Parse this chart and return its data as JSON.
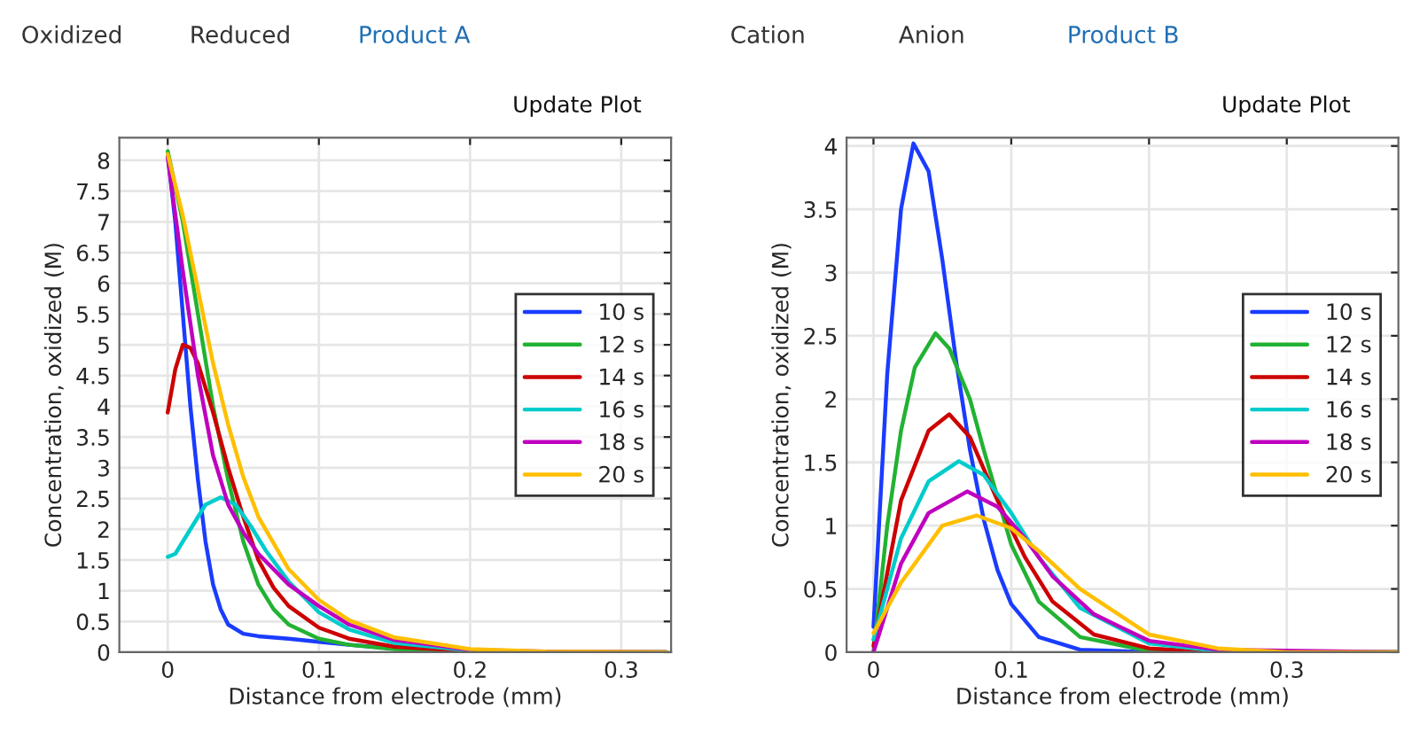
{
  "chart_data": [
    {
      "type": "line",
      "xlabel": "Distance from electrode (mm)",
      "ylabel": "Concentration, oxidized (M)",
      "annotations": [
        "Oxidized",
        "Reduced",
        "Product A",
        "Update Plot"
      ],
      "xlim": [
        -0.032,
        0.333
      ],
      "xticks": [
        0,
        0.1,
        0.2,
        0.3
      ],
      "ylim": [
        0,
        8.37
      ],
      "yticks": [
        0,
        0.5,
        1,
        1.5,
        2,
        2.5,
        3,
        3.5,
        4,
        4.5,
        5,
        5.5,
        6,
        6.5,
        7,
        7.5,
        8
      ],
      "grid": true,
      "legend": "right",
      "series": [
        {
          "name": "10 s",
          "color": "#1a3cff",
          "x": [
            0,
            0.005,
            0.01,
            0.015,
            0.02,
            0.025,
            0.03,
            0.035,
            0.04,
            0.05,
            0.06,
            0.08,
            0.1,
            0.12,
            0.15
          ],
          "values": [
            8.1,
            7,
            5.5,
            4,
            2.8,
            1.8,
            1.1,
            0.7,
            0.45,
            0.3,
            0.26,
            0.22,
            0.17,
            0.12,
            0.06
          ]
        },
        {
          "name": "12 s",
          "color": "#22b232",
          "x": [
            0,
            0.01,
            0.02,
            0.03,
            0.04,
            0.05,
            0.06,
            0.07,
            0.08,
            0.1,
            0.12,
            0.15,
            0.2,
            0.25,
            0.33
          ],
          "values": [
            8.15,
            7,
            5.5,
            4,
            2.8,
            1.8,
            1.1,
            0.7,
            0.45,
            0.22,
            0.12,
            0.05,
            0.01,
            0,
            0
          ]
        },
        {
          "name": "14 s",
          "color": "#cc0000",
          "x": [
            0,
            0.005,
            0.01,
            0.015,
            0.02,
            0.03,
            0.04,
            0.05,
            0.06,
            0.07,
            0.08,
            0.1,
            0.12,
            0.15,
            0.2,
            0.25,
            0.33
          ],
          "values": [
            3.9,
            4.6,
            5.0,
            4.95,
            4.7,
            3.9,
            3.0,
            2.2,
            1.5,
            1.05,
            0.75,
            0.4,
            0.22,
            0.09,
            0.02,
            0,
            0
          ]
        },
        {
          "name": "16 s",
          "color": "#00cccc",
          "x": [
            0,
            0.005,
            0.015,
            0.025,
            0.035,
            0.045,
            0.055,
            0.065,
            0.08,
            0.1,
            0.12,
            0.15,
            0.2,
            0.25,
            0.33
          ],
          "values": [
            1.55,
            1.6,
            2.0,
            2.4,
            2.52,
            2.4,
            2.05,
            1.65,
            1.15,
            0.65,
            0.37,
            0.15,
            0.03,
            0,
            0
          ]
        },
        {
          "name": "18 s",
          "color": "#bf00bf",
          "x": [
            0,
            0.01,
            0.02,
            0.03,
            0.04,
            0.05,
            0.06,
            0.08,
            0.1,
            0.12,
            0.15,
            0.2,
            0.25,
            0.33
          ],
          "values": [
            8.05,
            6.2,
            4.5,
            3.2,
            2.4,
            1.95,
            1.6,
            1.1,
            0.75,
            0.45,
            0.2,
            0.04,
            0.01,
            0
          ]
        },
        {
          "name": "20 s",
          "color": "#ffbf00",
          "x": [
            0,
            0.01,
            0.02,
            0.03,
            0.04,
            0.05,
            0.06,
            0.08,
            0.1,
            0.12,
            0.15,
            0.2,
            0.25,
            0.33
          ],
          "values": [
            8.1,
            7.1,
            5.9,
            4.7,
            3.7,
            2.85,
            2.2,
            1.35,
            0.85,
            0.52,
            0.24,
            0.05,
            0.01,
            0
          ]
        }
      ]
    },
    {
      "type": "line",
      "xlabel": "Distance from electrode (mm)",
      "ylabel": "Concentration, oxidized (M)",
      "annotations": [
        "Cation",
        "Anion",
        "Product B",
        "Update Plot"
      ],
      "xlim": [
        -0.0195,
        0.381
      ],
      "xticks": [
        0,
        0.1,
        0.2,
        0.3
      ],
      "ylim": [
        0,
        4.066
      ],
      "yticks": [
        0,
        0.5,
        1,
        1.5,
        2,
        2.5,
        3,
        3.5,
        4
      ],
      "grid": true,
      "legend": "right",
      "series": [
        {
          "name": "10 s",
          "color": "#1a3cff",
          "x": [
            0,
            0.01,
            0.02,
            0.029,
            0.04,
            0.05,
            0.06,
            0.07,
            0.08,
            0.09,
            0.1,
            0.12,
            0.15,
            0.2,
            0.38
          ],
          "values": [
            0.2,
            2.2,
            3.5,
            4.02,
            3.8,
            3.1,
            2.3,
            1.6,
            1.05,
            0.65,
            0.38,
            0.12,
            0.02,
            0,
            0
          ]
        },
        {
          "name": "12 s",
          "color": "#22b232",
          "x": [
            0,
            0.01,
            0.02,
            0.03,
            0.045,
            0.055,
            0.07,
            0.08,
            0.1,
            0.12,
            0.15,
            0.2,
            0.25,
            0.38
          ],
          "values": [
            0,
            1.0,
            1.75,
            2.25,
            2.52,
            2.4,
            2.0,
            1.6,
            0.85,
            0.4,
            0.12,
            0.01,
            0,
            0
          ]
        },
        {
          "name": "14 s",
          "color": "#cc0000",
          "x": [
            0,
            0.02,
            0.04,
            0.055,
            0.07,
            0.09,
            0.11,
            0.13,
            0.16,
            0.2,
            0.25,
            0.38
          ],
          "values": [
            0.05,
            1.2,
            1.75,
            1.88,
            1.7,
            1.2,
            0.75,
            0.4,
            0.14,
            0.03,
            0,
            0
          ]
        },
        {
          "name": "16 s",
          "color": "#00cccc",
          "x": [
            0,
            0.02,
            0.04,
            0.062,
            0.08,
            0.1,
            0.12,
            0.15,
            0.2,
            0.25,
            0.38
          ],
          "values": [
            0.1,
            0.9,
            1.35,
            1.51,
            1.4,
            1.1,
            0.75,
            0.35,
            0.07,
            0.01,
            0
          ]
        },
        {
          "name": "18 s",
          "color": "#bf00bf",
          "x": [
            0,
            0.02,
            0.04,
            0.068,
            0.09,
            0.11,
            0.13,
            0.16,
            0.2,
            0.25,
            0.38
          ],
          "values": [
            0,
            0.7,
            1.1,
            1.27,
            1.15,
            0.9,
            0.6,
            0.3,
            0.09,
            0.02,
            0
          ]
        },
        {
          "name": "20 s",
          "color": "#ffbf00",
          "x": [
            0,
            0.02,
            0.05,
            0.075,
            0.1,
            0.12,
            0.15,
            0.2,
            0.25,
            0.3,
            0.38
          ],
          "values": [
            0.15,
            0.55,
            1.0,
            1.08,
            0.98,
            0.8,
            0.5,
            0.14,
            0.03,
            0,
            0
          ]
        }
      ]
    }
  ]
}
